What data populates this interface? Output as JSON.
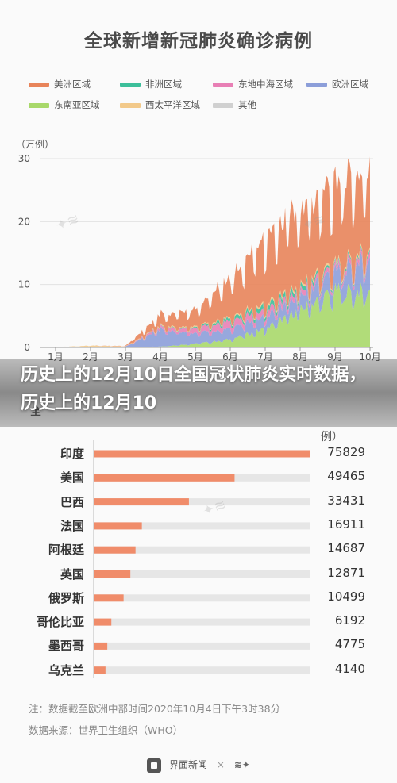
{
  "title": "全球新增新冠肺炎确诊病例",
  "banner": "历史上的12月10日全国冠状肺炎实时数据，历史上的12月10",
  "bar_title_fragment": "全",
  "unit": "例）",
  "notes": {
    "line1": "注：数据截至欧洲中部时间2020年10月4日下午3时38分",
    "line2": "数据来源：世界卫生组织（WHO）"
  },
  "footer": {
    "brand": "界面新闻",
    "separator": "×"
  },
  "colors": {
    "americas": "#e8845a",
    "africa": "#3cbf9a",
    "eastern_med": "#e87fb5",
    "europe": "#8c9ed9",
    "southeast_asia": "#a8d86a",
    "western_pacific": "#f2c98a",
    "other": "#d0d0d0",
    "bar": "#f08c6a",
    "bar_track": "#e6e6e6"
  },
  "chart_data": [
    {
      "type": "area",
      "stacked": true,
      "title": "全球新增新冠肺炎确诊病例",
      "ylabel": "（万例）",
      "ylim": [
        0,
        30
      ],
      "yticks": [
        "0",
        "10",
        "20",
        "30"
      ],
      "xticks": [
        "1月",
        "2月",
        "3月",
        "4月",
        "5月",
        "6月",
        "7月",
        "8月",
        "9月",
        "10月"
      ],
      "legend_position": "top",
      "grid": true,
      "x": [
        "1月",
        "2月",
        "3月",
        "4月",
        "5月",
        "6月",
        "7月",
        "8月",
        "9月",
        "10月"
      ],
      "series": [
        {
          "name": "东南亚区域",
          "color_key": "southeast_asia",
          "values": [
            0,
            0,
            0.02,
            0.15,
            0.6,
            1.3,
            3.0,
            6.0,
            9.0,
            9.0
          ]
        },
        {
          "name": "欧洲区域",
          "color_key": "europe",
          "values": [
            0,
            0,
            0.1,
            2.8,
            1.7,
            1.7,
            2.0,
            2.3,
            3.2,
            5.0
          ]
        },
        {
          "name": "东地中海区域",
          "color_key": "eastern_med",
          "values": [
            0,
            0,
            0.02,
            0.35,
            0.8,
            1.2,
            1.1,
            0.8,
            0.7,
            0.9
          ]
        },
        {
          "name": "非洲区域",
          "color_key": "africa",
          "values": [
            0,
            0,
            0,
            0.05,
            0.15,
            0.5,
            0.7,
            0.7,
            0.3,
            0.3
          ]
        },
        {
          "name": "西太平洋区域",
          "color_key": "western_pacific",
          "values": [
            0.05,
            0.3,
            0.05,
            0.15,
            0.15,
            0.15,
            0.3,
            0.3,
            0.3,
            0.3
          ]
        },
        {
          "name": "美洲区域",
          "color_key": "americas",
          "values": [
            0,
            0,
            0.05,
            1.8,
            2.8,
            6.5,
            11.0,
            12.0,
            13.0,
            13.0
          ]
        },
        {
          "name": "其他",
          "color_key": "other",
          "values": [
            0,
            0,
            0,
            0,
            0,
            0,
            0,
            0,
            0,
            0
          ]
        }
      ]
    },
    {
      "type": "bar",
      "orientation": "horizontal",
      "unit": "例）",
      "categories": [
        "印度",
        "美国",
        "巴西",
        "法国",
        "阿根廷",
        "英国",
        "俄罗斯",
        "哥伦比亚",
        "墨西哥",
        "乌克兰"
      ],
      "values": [
        75829,
        49465,
        33431,
        16911,
        14687,
        12871,
        10499,
        6192,
        4775,
        4140
      ],
      "value_labels": [
        "75829",
        "49465",
        "33431",
        "16911",
        "14687",
        "12871",
        "10499",
        "6192",
        "4775",
        "4140"
      ],
      "xlim": [
        0,
        75829
      ]
    }
  ]
}
